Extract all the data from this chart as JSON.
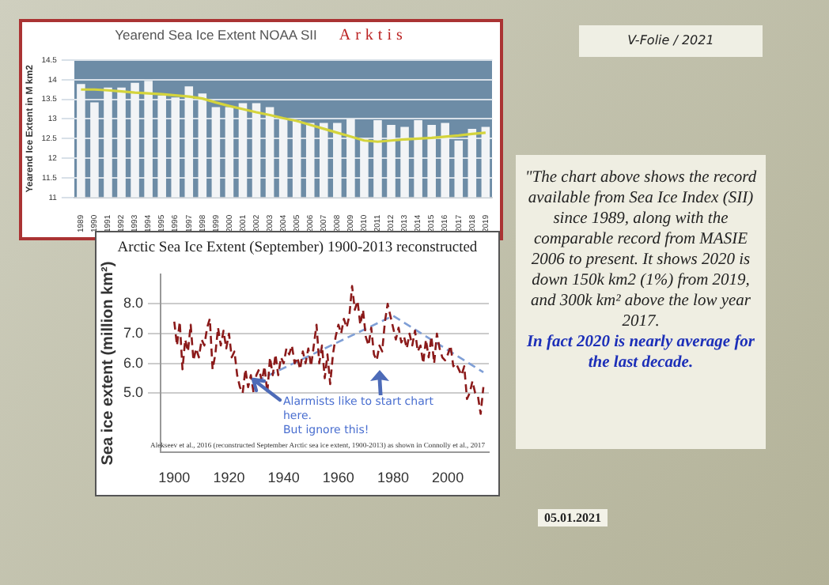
{
  "chart_data": [
    {
      "type": "bar",
      "title": "Yearend Sea Ice Extent NOAA SII",
      "subtitle": "Arktis",
      "ylabel": "Yearend Ice Extent in M km2",
      "categories": [
        "1989",
        "1990",
        "1991",
        "1992",
        "1993",
        "1994",
        "1995",
        "1996",
        "1997",
        "1998",
        "1999",
        "2000",
        "2001",
        "2002",
        "2003",
        "2004",
        "2005",
        "2006",
        "2007",
        "2008",
        "2009",
        "2010",
        "2011",
        "2012",
        "2013",
        "2014",
        "2015",
        "2016",
        "2017",
        "2018",
        "2019"
      ],
      "series": [
        {
          "type": "bar",
          "color": "#f2f4f6",
          "values": [
            13.89,
            13.42,
            13.8,
            13.8,
            13.92,
            13.97,
            13.6,
            13.55,
            13.83,
            13.65,
            13.3,
            13.3,
            13.4,
            13.4,
            13.3,
            13.0,
            12.97,
            12.9,
            12.9,
            12.9,
            13.0,
            12.5,
            12.97,
            12.85,
            12.8,
            12.97,
            12.85,
            12.9,
            12.45,
            12.75,
            12.8
          ]
        },
        {
          "type": "line",
          "color": "#d4d43c",
          "values": [
            13.75,
            13.75,
            13.73,
            13.7,
            13.67,
            13.65,
            13.63,
            13.6,
            13.57,
            13.52,
            13.42,
            13.33,
            13.25,
            13.17,
            13.1,
            13.02,
            12.95,
            12.85,
            12.75,
            12.65,
            12.55,
            12.45,
            12.42,
            12.45,
            12.48,
            12.5,
            12.52,
            12.55,
            12.58,
            12.62,
            12.65
          ]
        }
      ],
      "ylim": [
        11,
        14.5
      ],
      "yticks": [
        11,
        11.5,
        12,
        12.5,
        13,
        13.5,
        14,
        14.5
      ],
      "grid": "y",
      "legend": false,
      "marker": "none"
    },
    {
      "type": "line",
      "title": "Arctic Sea Ice Extent (September) 1900-2013 reconstructed",
      "ylabel": "Sea ice extent (million km²)",
      "x": [
        1900,
        1901,
        1902,
        1903,
        1904,
        1905,
        1906,
        1907,
        1908,
        1909,
        1910,
        1911,
        1912,
        1913,
        1914,
        1915,
        1916,
        1917,
        1918,
        1919,
        1920,
        1921,
        1922,
        1923,
        1924,
        1925,
        1926,
        1927,
        1928,
        1929,
        1930,
        1931,
        1932,
        1933,
        1934,
        1935,
        1936,
        1937,
        1938,
        1939,
        1940,
        1941,
        1942,
        1943,
        1944,
        1945,
        1946,
        1947,
        1948,
        1949,
        1950,
        1951,
        1952,
        1953,
        1954,
        1955,
        1956,
        1957,
        1958,
        1959,
        1960,
        1961,
        1962,
        1963,
        1964,
        1965,
        1966,
        1967,
        1968,
        1969,
        1970,
        1971,
        1972,
        1973,
        1974,
        1975,
        1976,
        1977,
        1978,
        1979,
        1980,
        1981,
        1982,
        1983,
        1984,
        1985,
        1986,
        1987,
        1988,
        1989,
        1990,
        1991,
        1992,
        1993,
        1994,
        1995,
        1996,
        1997,
        1998,
        1999,
        2000,
        2001,
        2002,
        2003,
        2004,
        2005,
        2006,
        2007,
        2008,
        2009,
        2010,
        2011,
        2012,
        2013
      ],
      "series": [
        {
          "type": "line",
          "color": "#8b1a1a",
          "line_style": "dashed",
          "values": [
            7.4,
            6.6,
            7.4,
            5.8,
            6.8,
            6.4,
            7.3,
            6.1,
            6.5,
            6.2,
            6.8,
            6.6,
            7.2,
            7.5,
            5.8,
            6.3,
            7.2,
            6.6,
            7.1,
            6.5,
            7.0,
            6.2,
            6.4,
            5.6,
            5.2,
            5.0,
            5.8,
            5.2,
            5.6,
            5.0,
            5.6,
            5.8,
            5.4,
            5.9,
            5.0,
            6.2,
            5.6,
            6.3,
            5.6,
            6.2,
            6.0,
            6.5,
            6.3,
            6.6,
            6.0,
            6.2,
            5.8,
            6.4,
            6.0,
            6.5,
            5.9,
            6.6,
            7.3,
            6.0,
            6.6,
            5.5,
            6.3,
            5.3,
            6.3,
            6.9,
            7.3,
            7.0,
            7.5,
            7.2,
            7.6,
            8.6,
            7.8,
            8.1,
            7.3,
            7.8,
            6.9,
            6.6,
            7.2,
            6.3,
            6.1,
            6.6,
            6.4,
            7.4,
            8.0,
            7.6,
            7.2,
            6.8,
            7.2,
            6.7,
            6.9,
            6.5,
            7.0,
            6.6,
            7.1,
            6.4,
            6.6,
            6.0,
            6.8,
            6.2,
            6.9,
            6.0,
            7.0,
            6.5,
            6.2,
            6.1,
            6.3,
            6.6,
            5.9,
            6.0,
            5.8,
            5.6,
            5.9,
            4.8,
            5.0,
            5.4,
            5.0,
            4.9,
            4.3,
            5.2
          ]
        },
        {
          "type": "line",
          "color": "#7f9fd6",
          "line_style": "dashed",
          "x": [
            1930,
            1980,
            2013
          ],
          "values": [
            5.4,
            7.6,
            5.7
          ]
        }
      ],
      "xlim": [
        1895,
        2015
      ],
      "xticks": [
        1900,
        1920,
        1940,
        1960,
        1980,
        2000
      ],
      "ylim": [
        3,
        9
      ],
      "yticks": [
        {
          "value": 5,
          "label": "5.0"
        },
        {
          "value": 6,
          "label": "6.0"
        },
        {
          "value": 7,
          "label": "7.0"
        },
        {
          "value": 8,
          "label": "8.0"
        }
      ],
      "grid": "y",
      "legend": false,
      "marker": "none",
      "annotations": [
        "Alarmists like to start chart here.",
        "But ignore this!",
        "Alekseev et al., 2016 (reconstructed September Arctic sea ice extent, 1900-2013) as shown in Connolly et al., 2017"
      ]
    },
    {
      "type": "other",
      "annotations": [
        "V-Folie / 2021",
        "\"The chart above shows the record available from Sea Ice Index (SII) since 1989, along with the comparable record from MASIE 2006 to present. It shows 2020 is down 150k km2 (1%) from 2019, and 300k km² above the low year 2017.",
        "In fact 2020 is nearly average for the last decade.",
        "05.01.2021"
      ]
    }
  ]
}
